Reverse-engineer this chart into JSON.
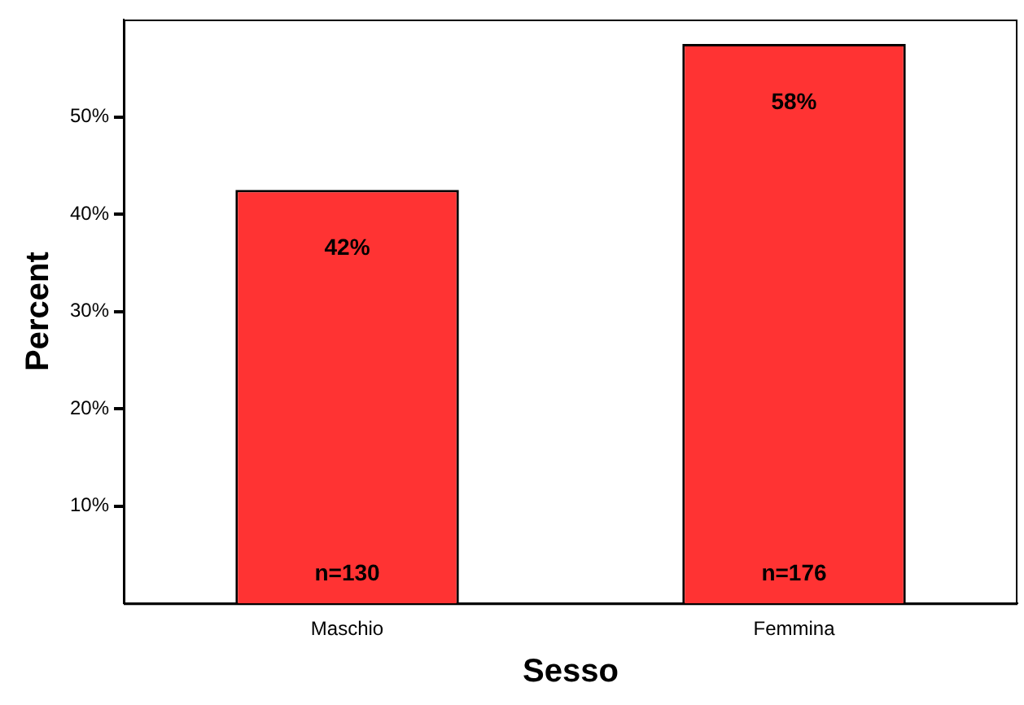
{
  "chart_data": {
    "type": "bar",
    "xlabel": "Sesso",
    "ylabel": "Percent",
    "categories": [
      "Maschio",
      "Femmina"
    ],
    "values": [
      42.5,
      57.5
    ],
    "value_labels": [
      "42%",
      "58%"
    ],
    "color": "#ff3333",
    "ylim": [
      0,
      60
    ],
    "yticks": [
      {
        "value": 10,
        "label": "10%"
      },
      {
        "value": 20,
        "label": "20%"
      },
      {
        "value": 30,
        "label": "30%"
      },
      {
        "value": 40,
        "label": "40%"
      },
      {
        "value": 50,
        "label": "50%"
      }
    ],
    "annotations": [
      "n=130",
      "n=176"
    ],
    "grid": false,
    "legend": false
  }
}
